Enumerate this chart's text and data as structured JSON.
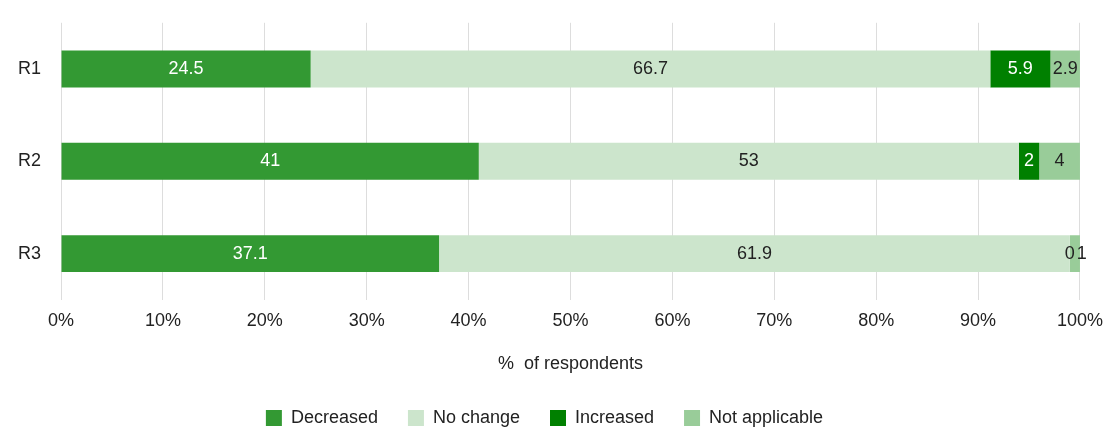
{
  "chart_data": {
    "type": "bar",
    "orientation": "horizontal",
    "stacked": true,
    "xlabel": "%  of respondents",
    "categories": [
      "R1",
      "R2",
      "R3"
    ],
    "series": [
      {
        "name": "Decreased",
        "color": "#339933",
        "values": [
          24.5,
          41,
          37.1
        ]
      },
      {
        "name": "No change",
        "color": "#cce5cc",
        "values": [
          66.7,
          53,
          61.9
        ]
      },
      {
        "name": "Increased",
        "color": "#008000",
        "values": [
          5.9,
          2,
          0
        ]
      },
      {
        "name": "Not applicable",
        "color": "#99cc99",
        "values": [
          2.9,
          4,
          1
        ]
      }
    ],
    "xlim": [
      0,
      100
    ],
    "xticks": [
      {
        "value": 0,
        "label": "0%"
      },
      {
        "value": 10,
        "label": "10%"
      },
      {
        "value": 20,
        "label": "20%"
      },
      {
        "value": 30,
        "label": "30%"
      },
      {
        "value": 40,
        "label": "40%"
      },
      {
        "value": 50,
        "label": "50%"
      },
      {
        "value": 60,
        "label": "60%"
      },
      {
        "value": 70,
        "label": "70%"
      },
      {
        "value": 80,
        "label": "80%"
      },
      {
        "value": 90,
        "label": "90%"
      },
      {
        "value": 100,
        "label": "100%"
      }
    ],
    "grid": "x",
    "legend": "bottom",
    "data_labels": true
  }
}
